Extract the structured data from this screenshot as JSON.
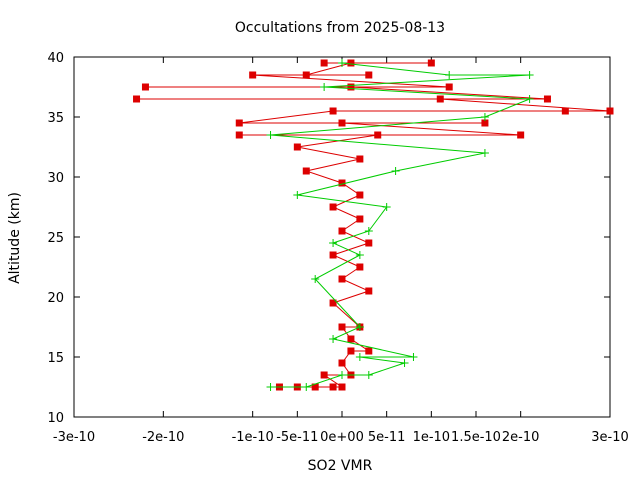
{
  "chart_data": {
    "type": "line",
    "title": "Occultations from 2025-08-13",
    "xlabel": "SO2 VMR",
    "ylabel": "Altitude (km)",
    "xlim": [
      -3e-10,
      3e-10
    ],
    "ylim": [
      10,
      40
    ],
    "grid": false,
    "x_ticks": [
      -3e-10,
      -2e-10,
      -1e-10,
      -5e-11,
      0,
      5e-11,
      1e-10,
      1.5e-10,
      2e-10,
      3e-10
    ],
    "x_tick_labels": [
      "-3e-10",
      "-2e-10",
      "-1e-10",
      "-5e-11",
      "0e+00",
      "5e-11",
      "1e-10",
      "1.5e-10",
      "2e-10",
      "3e-10"
    ],
    "y_ticks": [
      10,
      15,
      20,
      25,
      30,
      35,
      40
    ],
    "y_tick_labels": [
      "10",
      "15",
      "20",
      "25",
      "30",
      "35",
      "40"
    ],
    "colors": {
      "red_series": "#dd0000",
      "green_series": "#00cc00",
      "frame": "#000000"
    },
    "series": [
      {
        "marker": "square",
        "color": "#dd0000",
        "points": [
          [
            -7e-11,
            12.5
          ],
          [
            -5e-11,
            12.5
          ],
          [
            -3e-11,
            12.5
          ],
          [
            -1e-11,
            12.5
          ],
          [
            0,
            12.5
          ],
          [
            -2e-11,
            13.5
          ],
          [
            1e-11,
            13.5
          ],
          [
            0,
            14.5
          ],
          [
            1e-11,
            15.5
          ],
          [
            3e-11,
            15.5
          ],
          [
            1e-11,
            16.5
          ],
          [
            0,
            17.5
          ],
          [
            2e-11,
            17.5
          ],
          [
            -1e-11,
            19.5
          ],
          [
            3e-11,
            20.5
          ],
          [
            0,
            21.5
          ],
          [
            2e-11,
            22.5
          ],
          [
            -1e-11,
            23.5
          ],
          [
            3e-11,
            24.5
          ],
          [
            0,
            25.5
          ],
          [
            2e-11,
            26.5
          ],
          [
            -1e-11,
            27.5
          ],
          [
            2e-11,
            28.5
          ],
          [
            0,
            29.5
          ],
          [
            -4e-11,
            30.5
          ],
          [
            2e-11,
            31.5
          ],
          [
            -5e-11,
            32.5
          ],
          [
            4e-11,
            33.5
          ],
          [
            -1.15e-10,
            33.5
          ],
          [
            2e-10,
            33.5
          ],
          [
            0,
            34.5
          ],
          [
            1.6e-10,
            34.5
          ],
          [
            -1.15e-10,
            34.5
          ],
          [
            -1e-11,
            35.5
          ],
          [
            2.5e-10,
            35.5
          ],
          [
            3e-10,
            35.5
          ],
          [
            1.1e-10,
            36.5
          ],
          [
            -2.3e-10,
            36.5
          ],
          [
            2.3e-10,
            36.5
          ],
          [
            1e-11,
            37.5
          ],
          [
            -2.2e-10,
            37.5
          ],
          [
            1.2e-10,
            37.5
          ],
          [
            -1e-10,
            38.5
          ],
          [
            3e-11,
            38.5
          ],
          [
            -4e-11,
            38.5
          ],
          [
            1e-11,
            39.5
          ],
          [
            1e-10,
            39.5
          ],
          [
            -2e-11,
            39.5
          ]
        ]
      },
      {
        "marker": "plus",
        "color": "#00cc00",
        "points": [
          [
            -8e-11,
            12.5
          ],
          [
            -4e-11,
            12.5
          ],
          [
            0,
            13.5
          ],
          [
            3e-11,
            13.5
          ],
          [
            7e-11,
            14.5
          ],
          [
            2e-11,
            15
          ],
          [
            8e-11,
            15
          ],
          [
            -1e-11,
            16.5
          ],
          [
            2e-11,
            17.5
          ],
          [
            -3e-11,
            21.5
          ],
          [
            2e-11,
            23.5
          ],
          [
            -1e-11,
            24.5
          ],
          [
            3e-11,
            25.5
          ],
          [
            5e-11,
            27.5
          ],
          [
            -5e-11,
            28.5
          ],
          [
            6e-11,
            30.5
          ],
          [
            1.6e-10,
            32
          ],
          [
            -8e-11,
            33.5
          ],
          [
            1.6e-10,
            35
          ],
          [
            2.1e-10,
            36.5
          ],
          [
            -2e-11,
            37.5
          ],
          [
            2.1e-10,
            38.5
          ],
          [
            1.2e-10,
            38.5
          ],
          [
            0,
            39.5
          ]
        ]
      }
    ]
  }
}
